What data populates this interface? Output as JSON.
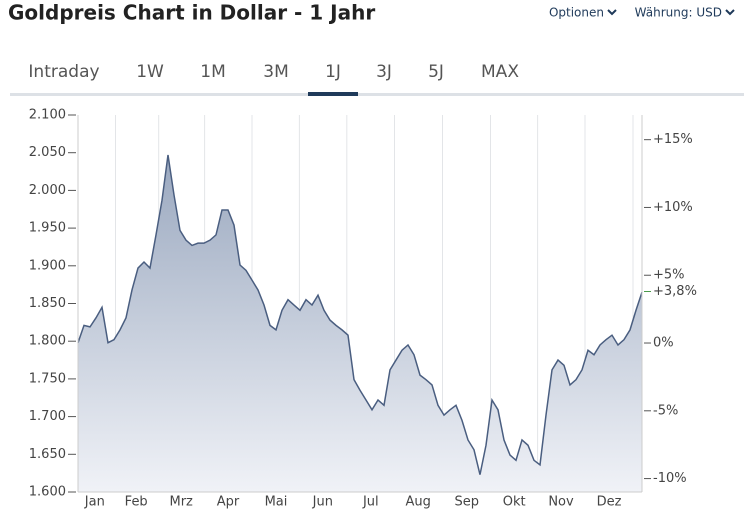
{
  "header": {
    "title": "Goldpreis Chart in Dollar - 1 Jahr",
    "options": "Optionen",
    "currency": "Währung: USD"
  },
  "tabs": {
    "items": [
      "Intraday",
      "1W",
      "1M",
      "3M",
      "1J",
      "3J",
      "5J",
      "MAX"
    ],
    "active": 4
  },
  "chart_data": {
    "type": "area",
    "color": "#4a5e80",
    "values": [
      1798,
      1821,
      1819,
      1831,
      1845,
      1798,
      1802,
      1815,
      1831,
      1868,
      1897,
      1905,
      1897,
      1941,
      1987,
      2047,
      1994,
      1947,
      1934,
      1927,
      1930,
      1930,
      1934,
      1941,
      1974,
      1974,
      1954,
      1901,
      1894,
      1881,
      1868,
      1848,
      1821,
      1815,
      1841,
      1855,
      1848,
      1841,
      1855,
      1848,
      1861,
      1841,
      1828,
      1821,
      1815,
      1808,
      1749,
      1735,
      1722,
      1709,
      1722,
      1715,
      1762,
      1775,
      1788,
      1795,
      1782,
      1755,
      1749,
      1742,
      1715,
      1702,
      1709,
      1715,
      1695,
      1669,
      1656,
      1623,
      1662,
      1722,
      1709,
      1669,
      1649,
      1642,
      1669,
      1662,
      1642,
      1636,
      1702,
      1762,
      1775,
      1768,
      1742,
      1749,
      1762,
      1788,
      1782,
      1795,
      1802,
      1808,
      1795,
      1802,
      1815,
      1841,
      1865
    ],
    "xlim": [
      0,
      94
    ],
    "xticks": [
      {
        "value": 2.8,
        "label": "Jan"
      },
      {
        "value": 9.7,
        "label": "Feb"
      },
      {
        "value": 17.2,
        "label": "Mrz"
      },
      {
        "value": 25,
        "label": "Apr"
      },
      {
        "value": 33,
        "label": "Mai"
      },
      {
        "value": 40.8,
        "label": "Jun"
      },
      {
        "value": 48.8,
        "label": "Jul"
      },
      {
        "value": 56.7,
        "label": "Aug"
      },
      {
        "value": 64.8,
        "label": "Sep"
      },
      {
        "value": 72.7,
        "label": "Okt"
      },
      {
        "value": 80.5,
        "label": "Nov"
      },
      {
        "value": 88.5,
        "label": "Dez"
      }
    ],
    "ylim": [
      1600,
      2100
    ],
    "yticks": [
      {
        "value": 1600,
        "label": "1.600"
      },
      {
        "value": 1650,
        "label": "1.650"
      },
      {
        "value": 1700,
        "label": "1.700"
      },
      {
        "value": 1750,
        "label": "1.750"
      },
      {
        "value": 1800,
        "label": "1.800"
      },
      {
        "value": 1850,
        "label": "1.850"
      },
      {
        "value": 1900,
        "label": "1.900"
      },
      {
        "value": 1950,
        "label": "1.950"
      },
      {
        "value": 2000,
        "label": "2.000"
      },
      {
        "value": 2050,
        "label": "2.050"
      },
      {
        "value": 2100,
        "label": "2.100"
      }
    ],
    "y2lim": [
      -10.99,
      16.82
    ],
    "y2ticks": [
      {
        "value": -10,
        "label": "-10%"
      },
      {
        "value": -5,
        "label": "-5%"
      },
      {
        "value": 0,
        "label": "0%"
      },
      {
        "value": 5,
        "label": "+5%"
      },
      {
        "value": 10,
        "label": "+10%"
      },
      {
        "value": 15,
        "label": "+15%"
      }
    ],
    "annotations": [
      {
        "text": "+3,8%",
        "value": 3.8,
        "axis": "y2",
        "color": "#4a9a4a"
      }
    ],
    "grid": true
  }
}
